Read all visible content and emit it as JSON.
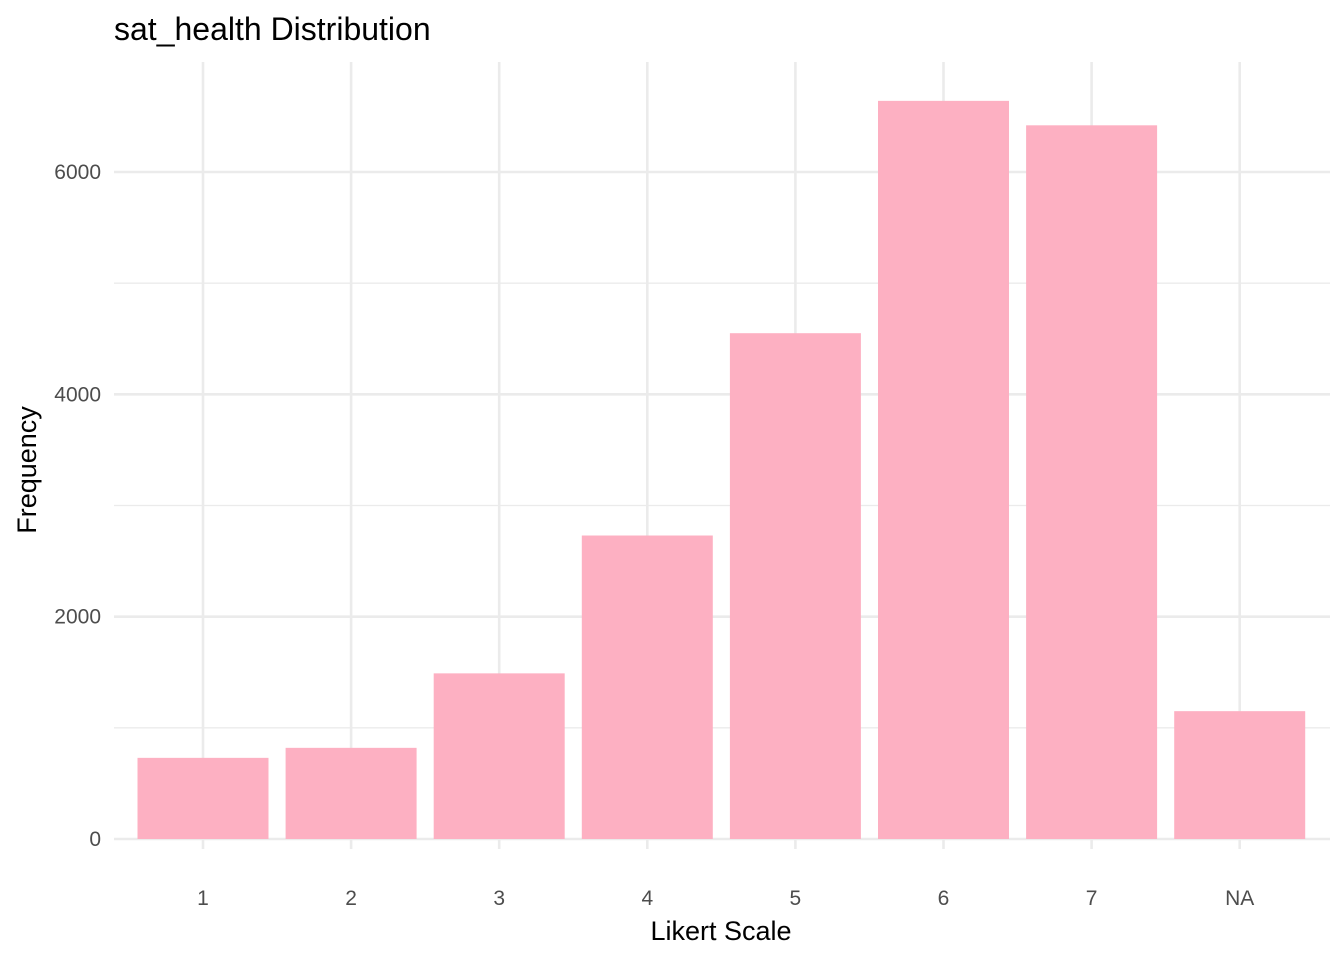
{
  "chart_data": {
    "type": "bar",
    "title": "sat_health Distribution",
    "xlabel": "Likert Scale",
    "ylabel": "Frequency",
    "categories": [
      "1",
      "2",
      "3",
      "4",
      "5",
      "6",
      "7",
      "NA"
    ],
    "values": [
      730,
      820,
      1490,
      2730,
      4550,
      6640,
      6420,
      1150
    ],
    "ylim": [
      0,
      7000
    ],
    "yticks": [
      0,
      2000,
      4000,
      6000
    ],
    "yticks_labels": [
      "0",
      "2000",
      "4000",
      "6000"
    ],
    "grid": true,
    "bar_color": "#FDB0C2",
    "grid_color": "#EBEBEB"
  }
}
